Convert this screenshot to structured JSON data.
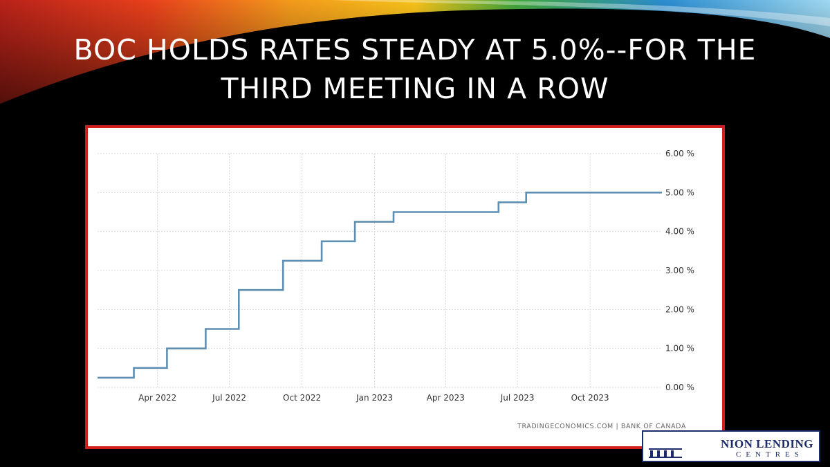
{
  "slide": {
    "title_line1": "BOC HOLDS RATES STEADY AT 5.0%--FOR THE",
    "title_line2": "THIRD MEETING IN A ROW",
    "accent_colors": [
      "#e8401c",
      "#f7c21a",
      "#41a639",
      "#2a8ccf",
      "#d11f1f"
    ]
  },
  "logo": {
    "name": "NION LENDING",
    "sub": "CENTRES"
  },
  "chart_data": {
    "type": "line",
    "title": "",
    "xlabel": "",
    "ylabel": "",
    "step": true,
    "x_ticks": [
      "Apr 2022",
      "Jul 2022",
      "Oct 2022",
      "Jan 2023",
      "Apr 2023",
      "Jul 2023",
      "Oct 2023"
    ],
    "y_ticks": [
      "0.00 %",
      "1.00 %",
      "2.00 %",
      "3.00 %",
      "4.00 %",
      "5.00 %",
      "6.00 %"
    ],
    "ylim": [
      0,
      6
    ],
    "xlim": [
      "2022-01-15",
      "2023-12-31"
    ],
    "grid": true,
    "y_axis_side": "right",
    "line_color": "#5e8fb3",
    "source": "TRADINGECONOMICS.COM | BANK OF CANADA",
    "series": [
      {
        "x": [
          "2022-01-15",
          "2022-03-02",
          "2022-04-13",
          "2022-06-01",
          "2022-07-13",
          "2022-09-07",
          "2022-10-26",
          "2022-12-07",
          "2023-01-25",
          "2023-06-07",
          "2023-07-12",
          "2023-12-31"
        ],
        "y": [
          0.25,
          0.5,
          1.0,
          1.5,
          2.5,
          3.25,
          3.75,
          4.25,
          4.5,
          4.75,
          5.0,
          5.0
        ]
      }
    ]
  }
}
